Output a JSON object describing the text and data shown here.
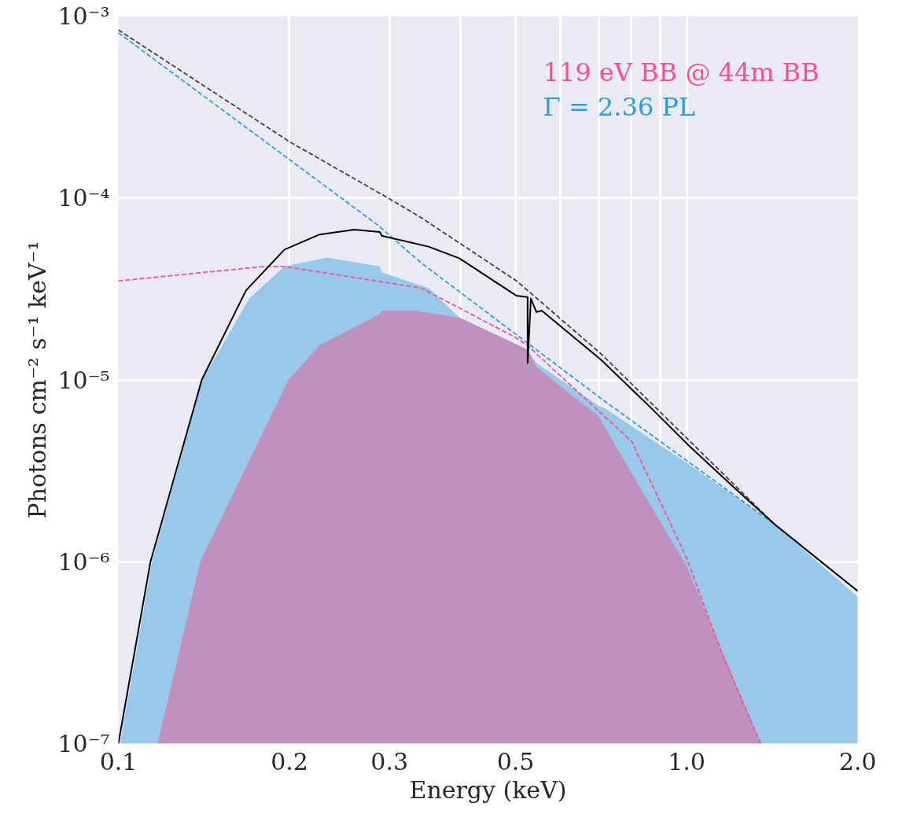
{
  "chart_data": {
    "type": "line",
    "xlabel": "Energy (keV)",
    "ylabel": "Photons cm⁻² s⁻¹ keV⁻¹",
    "log": "xy",
    "grid": true,
    "legend": "top",
    "marker": "none",
    "xlim": [
      0.1,
      2.0
    ],
    "ylim": [
      1e-07,
      0.001
    ],
    "xticks": [
      0.1,
      0.2,
      0.3,
      {
        "value": 0.4,
        "label": null
      },
      0.5,
      {
        "value": 0.6,
        "label": null
      },
      {
        "value": 0.7,
        "label": null
      },
      {
        "value": 0.8,
        "label": null
      },
      {
        "value": 0.9,
        "label": null
      },
      {
        "value": 1.0,
        "label": "1.0"
      },
      {
        "value": 2.0,
        "label": "2.0"
      }
    ],
    "yticks": [
      {
        "value": 1e-07,
        "label": "10⁻⁷"
      },
      {
        "value": 1e-06,
        "label": "10⁻⁶"
      },
      {
        "value": 1e-05,
        "label": "10⁻⁵"
      },
      {
        "value": 0.0001,
        "label": "10⁻⁴"
      },
      {
        "value": 0.001,
        "label": "10⁻³"
      }
    ],
    "series": [
      {
        "type": "area",
        "color": "#98c9ea",
        "x": [
          0.1007,
          0.1146,
          0.1406,
          0.1699,
          0.196,
          0.2329,
          0.2886,
          0.2906,
          0.3515,
          0.398,
          0.524,
          0.544,
          0.7,
          0.717,
          1.013,
          1.43,
          2.0
        ],
        "values": [
          1e-07,
          1e-06,
          1e-05,
          2.8e-05,
          4.2e-05,
          4.7e-05,
          4.2e-05,
          3.9e-05,
          3.2e-05,
          2.2e-05,
          1.47e-05,
          1.24e-05,
          7.2e-06,
          7e-06,
          3.4e-06,
          1.6e-06,
          6.4e-07
        ]
      },
      {
        "type": "area",
        "color": "#c090be",
        "x": [
          0.1173,
          0.1393,
          0.1992,
          0.226,
          0.2886,
          0.2906,
          0.333,
          0.398,
          0.524,
          0.544,
          0.7,
          0.8,
          1.0,
          1.35
        ],
        "values": [
          1e-07,
          1e-06,
          1e-05,
          1.55e-05,
          2.3e-05,
          2.4e-05,
          2.4e-05,
          2.2e-05,
          1.47e-05,
          1.18e-05,
          6.3e-06,
          3.07e-06,
          9.5e-07,
          1e-07
        ]
      },
      {
        "line_style": "dashed",
        "color": "#404040",
        "x": [
          0.1,
          0.2,
          0.3,
          0.341,
          0.502,
          0.707,
          1.013,
          1.43,
          2.0
        ],
        "values": [
          0.00084,
          0.000204,
          9.9e-05,
          7.8e-05,
          3.5e-05,
          1.39e-05,
          4.6e-06,
          1.6e-06,
          6.9e-07
        ]
      },
      {
        "line_style": "dashed",
        "name": "119 eV BB @ 44m BB",
        "color": "#fb4d90",
        "x": [
          0.1,
          0.18,
          0.196,
          0.341,
          0.502,
          0.524,
          0.8,
          1.0,
          1.15,
          1.35
        ],
        "values": [
          3.5e-05,
          4.2e-05,
          4.2e-05,
          3.2e-05,
          1.7e-05,
          1.55e-05,
          4.6e-06,
          1.05e-06,
          3.2e-07,
          1e-07
        ]
      },
      {
        "line_style": "dashed",
        "name": "Γ = 2.36 PL",
        "color": "#2a9de2",
        "x": [
          0.1,
          0.286,
          0.341,
          0.707,
          1.43,
          2.0
        ],
        "values": [
          0.00081,
          7.1e-05,
          4.4e-05,
          7.9e-06,
          1.6e-06,
          6.9e-07
        ]
      },
      {
        "line_style": "solid",
        "color": "#000000",
        "x": [
          0.1,
          0.1139,
          0.1402,
          0.1677,
          0.196,
          0.226,
          0.26,
          0.2886,
          0.2906,
          0.3515,
          0.398,
          0.502,
          0.525,
          0.5251,
          0.532,
          0.544,
          0.556,
          0.707,
          0.862,
          1.013,
          1.205,
          1.43,
          2.0
        ],
        "values": [
          1e-07,
          1e-06,
          1e-05,
          3.1e-05,
          5.2e-05,
          6.3e-05,
          6.7e-05,
          6.5e-05,
          6.2e-05,
          5.4e-05,
          4.66e-05,
          2.9e-05,
          2.85e-05,
          1.24e-05,
          2.8e-05,
          2.36e-05,
          2.4e-05,
          1.29e-05,
          7.1e-06,
          4.3e-06,
          2.6e-06,
          1.6e-06,
          6.9e-07
        ]
      }
    ]
  }
}
